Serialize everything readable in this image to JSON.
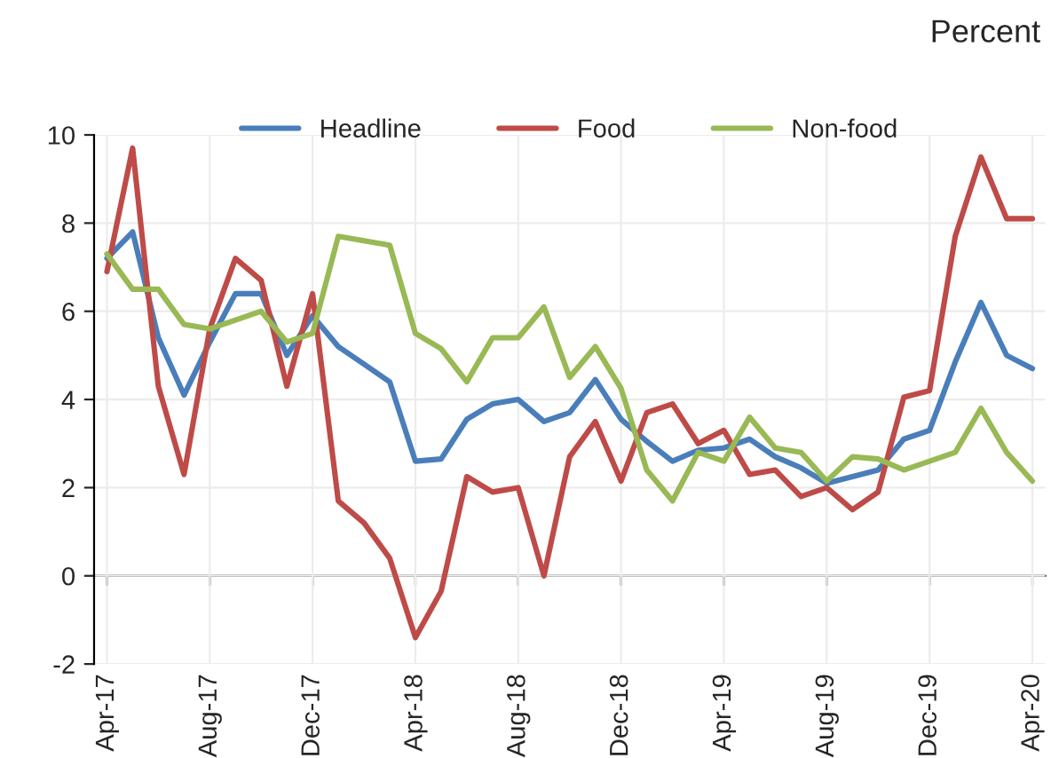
{
  "chart_data": {
    "type": "line",
    "ylabel": "Percent",
    "categories": [
      "Apr-17",
      null,
      null,
      null,
      "Aug-17",
      null,
      null,
      null,
      "Dec-17",
      null,
      null,
      null,
      "Apr-18",
      null,
      null,
      null,
      "Aug-18",
      null,
      null,
      null,
      "Dec-18",
      null,
      null,
      null,
      "Apr-19",
      null,
      null,
      null,
      "Aug-19",
      null,
      null,
      null,
      "Dec-19",
      null,
      null,
      null,
      "Apr-20"
    ],
    "series": [
      {
        "name": "Headline",
        "color": "#4a7ebb",
        "values": [
          7.2,
          7.8,
          5.4,
          4.1,
          5.3,
          6.4,
          6.4,
          5.0,
          5.9,
          5.2,
          4.8,
          4.4,
          2.6,
          2.65,
          3.55,
          3.9,
          4.0,
          3.5,
          3.7,
          4.45,
          3.55,
          3.05,
          2.6,
          2.85,
          2.9,
          3.1,
          2.7,
          2.45,
          2.1,
          2.25,
          2.4,
          3.1,
          3.3,
          4.85,
          6.2,
          5.0,
          4.7
        ]
      },
      {
        "name": "Food",
        "color": "#be4b48",
        "values": [
          6.9,
          9.7,
          4.3,
          2.3,
          5.6,
          7.2,
          6.7,
          4.3,
          6.4,
          1.7,
          1.2,
          0.4,
          -1.4,
          -0.35,
          2.25,
          1.9,
          2.0,
          0.0,
          2.7,
          3.5,
          2.15,
          3.7,
          3.9,
          3.0,
          3.3,
          2.3,
          2.4,
          1.8,
          2.0,
          1.5,
          1.9,
          4.05,
          4.2,
          7.7,
          9.5,
          8.1,
          8.1
        ]
      },
      {
        "name": "Non-food",
        "color": "#98b954",
        "values": [
          7.3,
          6.5,
          6.5,
          5.7,
          5.6,
          5.8,
          6.0,
          5.3,
          5.5,
          7.7,
          7.6,
          7.5,
          5.5,
          5.15,
          4.4,
          5.4,
          5.4,
          6.1,
          4.5,
          5.2,
          4.25,
          2.4,
          1.7,
          2.8,
          2.6,
          3.6,
          2.9,
          2.8,
          2.15,
          2.7,
          2.65,
          2.4,
          2.6,
          2.8,
          3.8,
          2.8,
          2.15
        ]
      }
    ],
    "ylim": [
      -2,
      10
    ],
    "yticks": [
      -2,
      0,
      2,
      4,
      6,
      8,
      10
    ],
    "grid": true,
    "legend": "top",
    "marker": "none",
    "line_style": "solid"
  }
}
